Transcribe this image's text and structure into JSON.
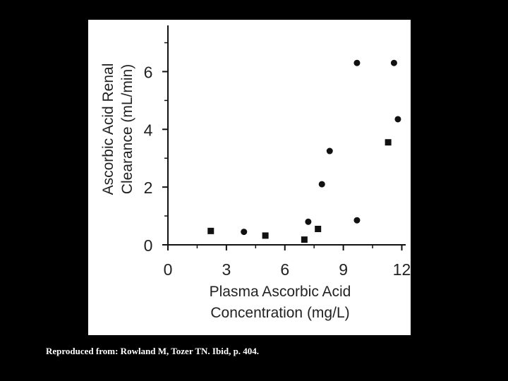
{
  "chart_data": {
    "type": "scatter",
    "title": "",
    "xlabel_lines": [
      "Plasma Ascorbic Acid",
      "Concentration (mg/L)"
    ],
    "ylabel_lines": [
      "Ascorbic Acid Renal",
      "Clearance (mL/min)"
    ],
    "xlim": [
      0,
      12.2
    ],
    "ylim": [
      0,
      7.6
    ],
    "xticks": [
      0,
      3,
      6,
      9,
      12
    ],
    "yticks": [
      0,
      2,
      4,
      6
    ],
    "grid": false,
    "series": [
      {
        "marker": "circle",
        "points": [
          {
            "x": 3.9,
            "y": 0.45
          },
          {
            "x": 7.2,
            "y": 0.8
          },
          {
            "x": 7.9,
            "y": 2.1
          },
          {
            "x": 8.3,
            "y": 3.25
          },
          {
            "x": 9.7,
            "y": 6.3
          },
          {
            "x": 9.7,
            "y": 0.85
          },
          {
            "x": 11.6,
            "y": 6.3
          },
          {
            "x": 11.8,
            "y": 4.35
          }
        ]
      },
      {
        "marker": "square",
        "points": [
          {
            "x": 2.2,
            "y": 0.48
          },
          {
            "x": 5.0,
            "y": 0.32
          },
          {
            "x": 7.0,
            "y": 0.18
          },
          {
            "x": 7.7,
            "y": 0.55
          },
          {
            "x": 11.3,
            "y": 3.55
          }
        ]
      }
    ]
  },
  "caption": "Reproduced from: Rowland M, Tozer TN. Ibid, p. 404."
}
